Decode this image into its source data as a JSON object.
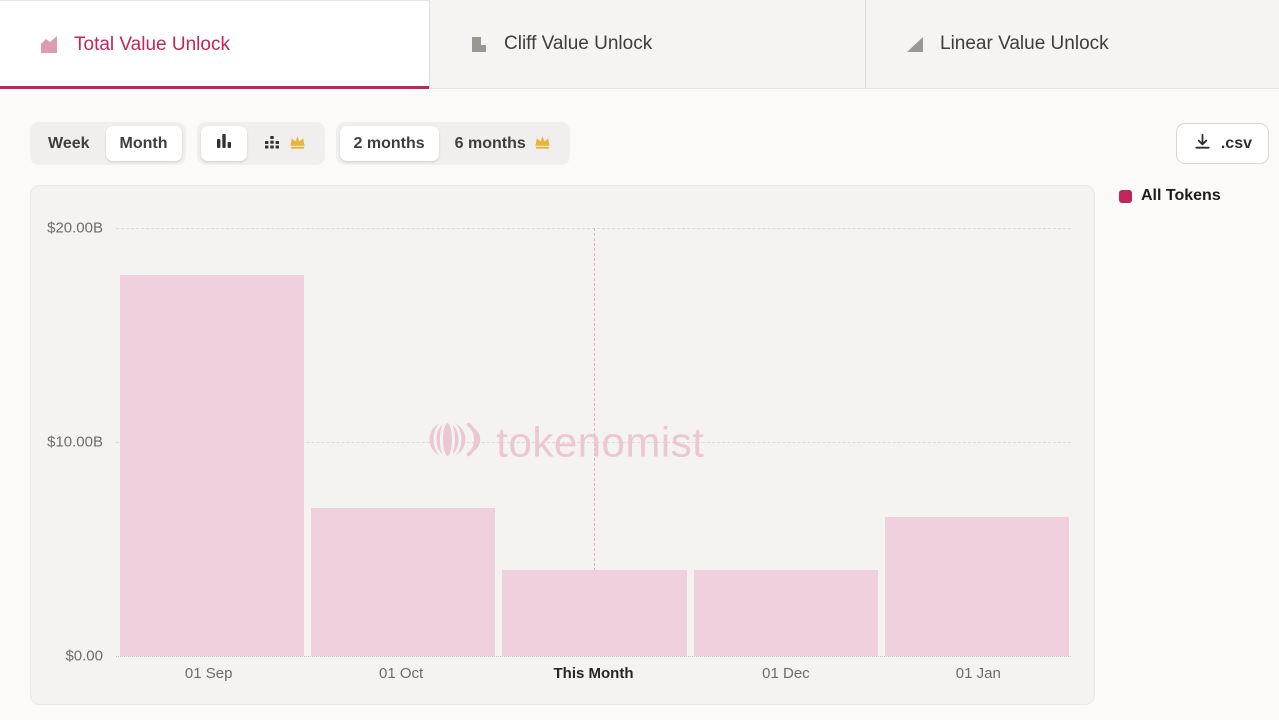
{
  "accent": "#c2255c",
  "bar_color": "#f0d0dc",
  "tabs": [
    {
      "label": "Total Value Unlock",
      "active": true
    },
    {
      "label": "Cliff Value Unlock",
      "active": false
    },
    {
      "label": "Linear Value Unlock",
      "active": false
    }
  ],
  "toolbar": {
    "week_label": "Week",
    "month_label": "Month",
    "two_months_label": "2 months",
    "six_months_label": "6 months",
    "csv_label": ".csv"
  },
  "legend": {
    "label": "All Tokens",
    "color": "#c2255c"
  },
  "watermark": "tokenomist",
  "chart_data": {
    "type": "bar",
    "series_name": "All Tokens",
    "categories": [
      "01 Sep",
      "01 Oct",
      "This Month",
      "01 Dec",
      "01 Jan"
    ],
    "values": [
      17.8,
      6.9,
      4.0,
      4.0,
      6.5
    ],
    "unit": "USD billions",
    "ylim": [
      0,
      20
    ],
    "yticks": [
      {
        "label": "$20.00B",
        "value": 20
      },
      {
        "label": "$10.00B",
        "value": 10
      },
      {
        "label": "$0.00",
        "value": 0
      }
    ],
    "highlight_category": "This Month",
    "grid": true,
    "legend_position": "top-right",
    "title": ""
  }
}
